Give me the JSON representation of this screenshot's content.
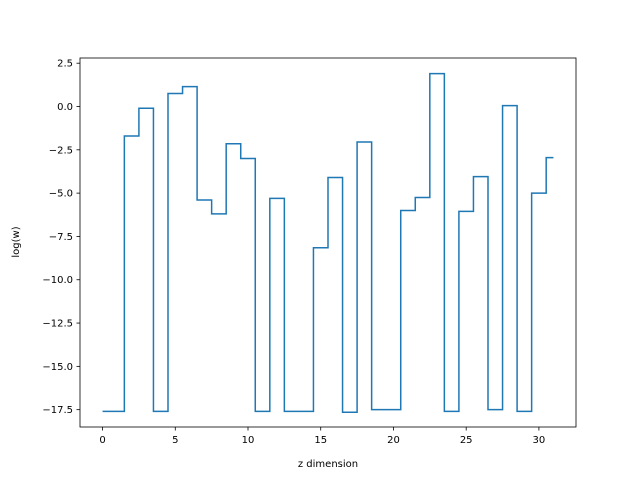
{
  "chart_data": {
    "type": "line",
    "drawstyle": "steps-mid",
    "title": "",
    "xlabel": "z dimension",
    "ylabel": "log(w)",
    "xlim": [
      -1.55,
      32.55
    ],
    "ylim": [
      -18.5,
      2.8
    ],
    "grid": false,
    "line_color": "#1f77b4",
    "x_ticks": [
      0,
      5,
      10,
      15,
      20,
      25,
      30
    ],
    "x_tick_labels": [
      "0",
      "5",
      "10",
      "15",
      "20",
      "25",
      "30"
    ],
    "y_ticks": [
      2.5,
      0.0,
      -2.5,
      -5.0,
      -7.5,
      -10.0,
      -12.5,
      -15.0,
      -17.5
    ],
    "y_tick_labels": [
      "2.5",
      "0.0",
      "−2.5",
      "−5.0",
      "−7.5",
      "−10.0",
      "−12.5",
      "−15.0",
      "−17.5"
    ],
    "series": [
      {
        "x": [
          0,
          1,
          2,
          3,
          4,
          5,
          6,
          7,
          8,
          9,
          10,
          11,
          12,
          13,
          14,
          15,
          16,
          17,
          18,
          19,
          20,
          21,
          22,
          23,
          24,
          25,
          26,
          27,
          28,
          29,
          30,
          31
        ],
        "values": [
          -17.6,
          -17.6,
          -1.7,
          -0.1,
          -17.6,
          0.75,
          1.15,
          -5.4,
          -6.2,
          -2.15,
          -3.0,
          -17.6,
          -5.3,
          -17.6,
          -17.6,
          -8.15,
          -4.1,
          -17.65,
          -2.05,
          -17.5,
          -17.5,
          -6.0,
          -5.25,
          1.9,
          -17.6,
          -6.05,
          -4.05,
          -17.5,
          0.05,
          -17.6,
          -5.0,
          -2.95
        ]
      }
    ]
  }
}
